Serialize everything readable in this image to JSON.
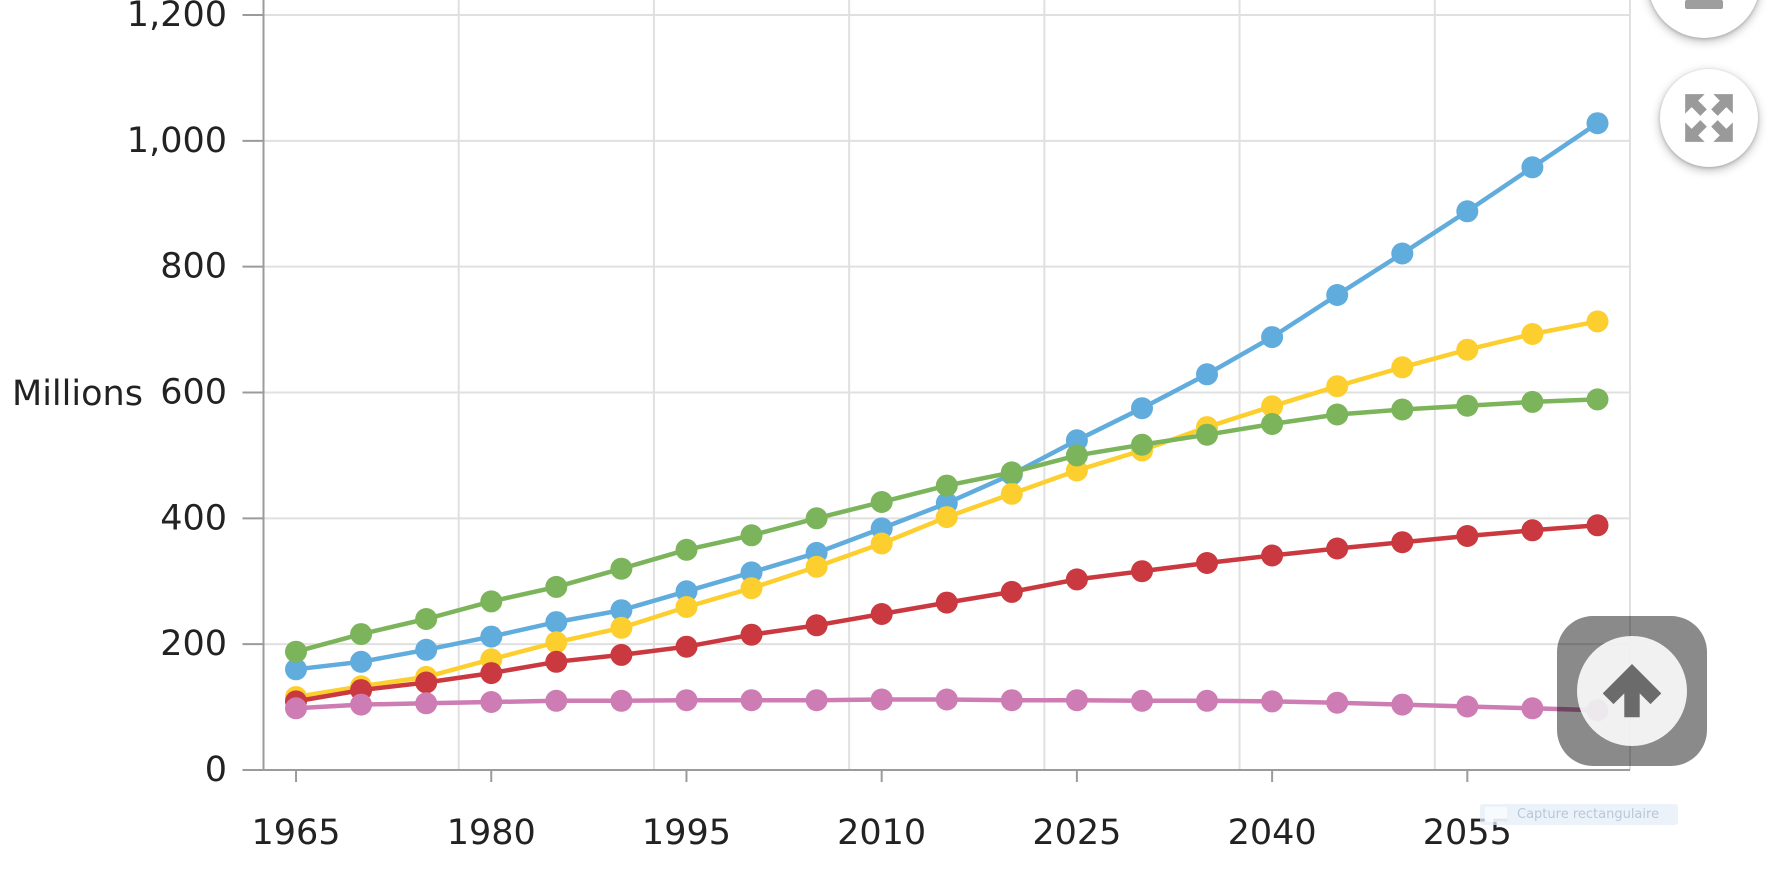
{
  "chart_data": {
    "type": "line",
    "title": "",
    "ylabel": "Millions",
    "xlabel": "",
    "x": [
      1965,
      1970,
      1975,
      1980,
      1985,
      1990,
      1995,
      2000,
      2005,
      2010,
      2015,
      2020,
      2025,
      2030,
      2035,
      2040,
      2045,
      2050,
      2055,
      2060,
      2065
    ],
    "x_tick_labels": [
      "1965",
      "1980",
      "1995",
      "2010",
      "2025",
      "2040",
      "2055"
    ],
    "y_ticks": [
      0,
      200,
      400,
      600,
      800,
      1000,
      1200
    ],
    "y_tick_labels": [
      "0",
      "200",
      "400",
      "600",
      "800",
      "1,000",
      "1,200"
    ],
    "ylim": [
      0,
      1200
    ],
    "grid": true,
    "legend": "none",
    "marker": "circle",
    "series": [
      {
        "name": "blue-series",
        "color": "#60acdc",
        "values": [
          160,
          172,
          191,
          212,
          235,
          254,
          284,
          314,
          345,
          384,
          424,
          470,
          524,
          575,
          629,
          688,
          755,
          821,
          888,
          958,
          1028
        ]
      },
      {
        "name": "yellow-series",
        "color": "#fdcf2e",
        "values": [
          116,
          133,
          148,
          176,
          203,
          226,
          259,
          289,
          323,
          360,
          402,
          439,
          476,
          508,
          545,
          578,
          610,
          640,
          668,
          693,
          713
        ]
      },
      {
        "name": "green-series",
        "color": "#7bb45a",
        "values": [
          188,
          216,
          240,
          268,
          291,
          320,
          350,
          373,
          400,
          426,
          452,
          473,
          500,
          517,
          533,
          550,
          565,
          573,
          579,
          585,
          589
        ]
      },
      {
        "name": "red-series",
        "color": "#c9393f",
        "values": [
          109,
          127,
          139,
          154,
          172,
          183,
          196,
          215,
          230,
          248,
          266,
          283,
          303,
          316,
          329,
          341,
          352,
          362,
          372,
          381,
          389
        ]
      },
      {
        "name": "pink-series",
        "color": "#ce7cb4",
        "values": [
          98,
          104,
          106,
          108,
          110,
          110,
          111,
          111,
          111,
          112,
          112,
          111,
          111,
          110,
          110,
          109,
          107,
          104,
          101,
          98,
          95
        ]
      }
    ],
    "axis_color": "#9b9b9b",
    "grid_color": "#e0e0e0",
    "label_color": "#222222"
  },
  "controls": {
    "zoom_out_label": "zoom out",
    "expand_label": "expand",
    "scroll_top_label": "scroll to top"
  },
  "overlay": {
    "capture_label": "Capture rectangulaire"
  }
}
